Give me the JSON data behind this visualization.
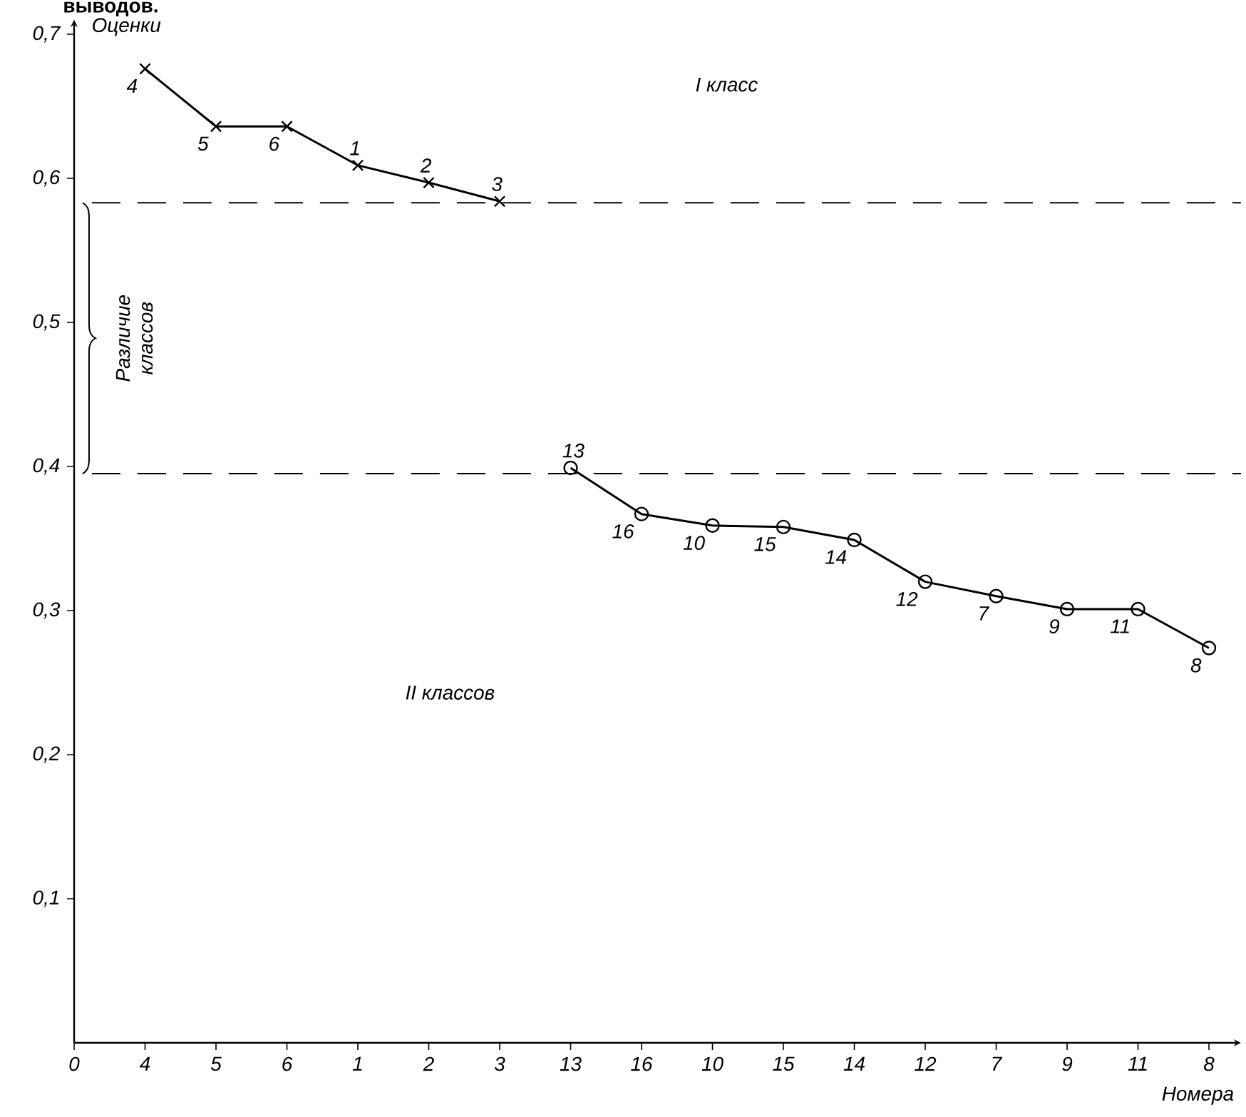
{
  "chart_data": {
    "type": "line",
    "xlabel": "Номера",
    "ylabel": "Оценки",
    "line_style": "solid",
    "grid": false,
    "categories": [
      "0",
      "4",
      "5",
      "6",
      "1",
      "2",
      "3",
      "13",
      "16",
      "10",
      "15",
      "14",
      "12",
      "7",
      "9",
      "11",
      "8"
    ],
    "series": [
      {
        "color": "#000000",
        "marker": "cross",
        "values": [
          null,
          0.676,
          0.636,
          0.636,
          0.609,
          0.597,
          0.584,
          null,
          null,
          null,
          null,
          null,
          null,
          null,
          null,
          null,
          null
        ]
      },
      {
        "color": "#000000",
        "marker": "circle",
        "values": [
          null,
          null,
          null,
          null,
          null,
          null,
          null,
          0.399,
          0.367,
          0.359,
          0.358,
          0.349,
          0.32,
          0.31,
          0.301,
          0.301,
          0.274
        ]
      }
    ],
    "ylim": [
      0,
      0.71
    ],
    "yticks": [
      {
        "value": 0.1,
        "label": "0,1"
      },
      {
        "value": 0.2,
        "label": "0,2"
      },
      {
        "value": 0.3,
        "label": "0,3"
      },
      {
        "value": 0.4,
        "label": "0,4"
      },
      {
        "value": 0.5,
        "label": "0,5"
      },
      {
        "value": 0.6,
        "label": "0,6"
      },
      {
        "value": 0.7,
        "label": "0,7"
      }
    ],
    "ref_lines": [
      {
        "axis": "y",
        "value": 0.583,
        "line_style": "dashed",
        "color": "#000000"
      },
      {
        "axis": "y",
        "value": 0.395,
        "line_style": "dashed",
        "color": "#000000"
      }
    ],
    "annotations": [
      "выводов.",
      "Различие классов",
      "I класс",
      "II классов",
      {
        "text": "4",
        "x": "4",
        "y": 0.676
      },
      {
        "text": "5",
        "x": "5",
        "y": 0.636
      },
      {
        "text": "6",
        "x": "6",
        "y": 0.636
      },
      {
        "text": "1",
        "x": "1",
        "y": 0.609
      },
      {
        "text": "2",
        "x": "2",
        "y": 0.597
      },
      {
        "text": "3",
        "x": "3",
        "y": 0.584
      },
      {
        "text": "13",
        "x": "13",
        "y": 0.399
      },
      {
        "text": "16",
        "x": "16",
        "y": 0.367
      },
      {
        "text": "10",
        "x": "10",
        "y": 0.359
      },
      {
        "text": "15",
        "x": "15",
        "y": 0.358
      },
      {
        "text": "14",
        "x": "14",
        "y": 0.349
      },
      {
        "text": "12",
        "x": "12",
        "y": 0.32
      },
      {
        "text": "7",
        "x": "7",
        "y": 0.31
      },
      {
        "text": "9",
        "x": "9",
        "y": 0.301
      },
      {
        "text": "11",
        "x": "11",
        "y": 0.301
      },
      {
        "text": "8",
        "x": "8",
        "y": 0.274
      }
    ]
  }
}
